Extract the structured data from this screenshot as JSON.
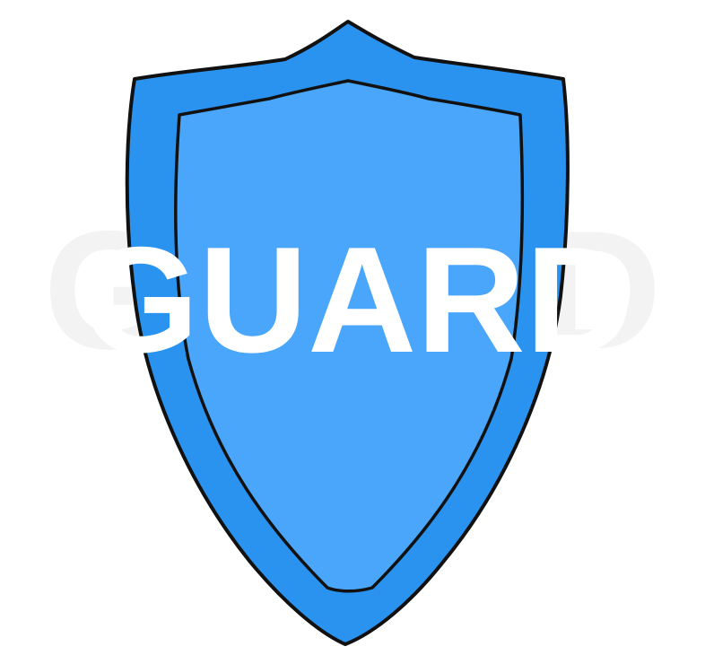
{
  "logo": {
    "word": "GUARD",
    "colors": {
      "background": "#ffffff",
      "shield_outer": "#2a93f0",
      "shield_inner": "#4aa6fa",
      "outline": "#111111",
      "text": "#ffffff",
      "watermark_text": "#f3f3f3"
    }
  }
}
